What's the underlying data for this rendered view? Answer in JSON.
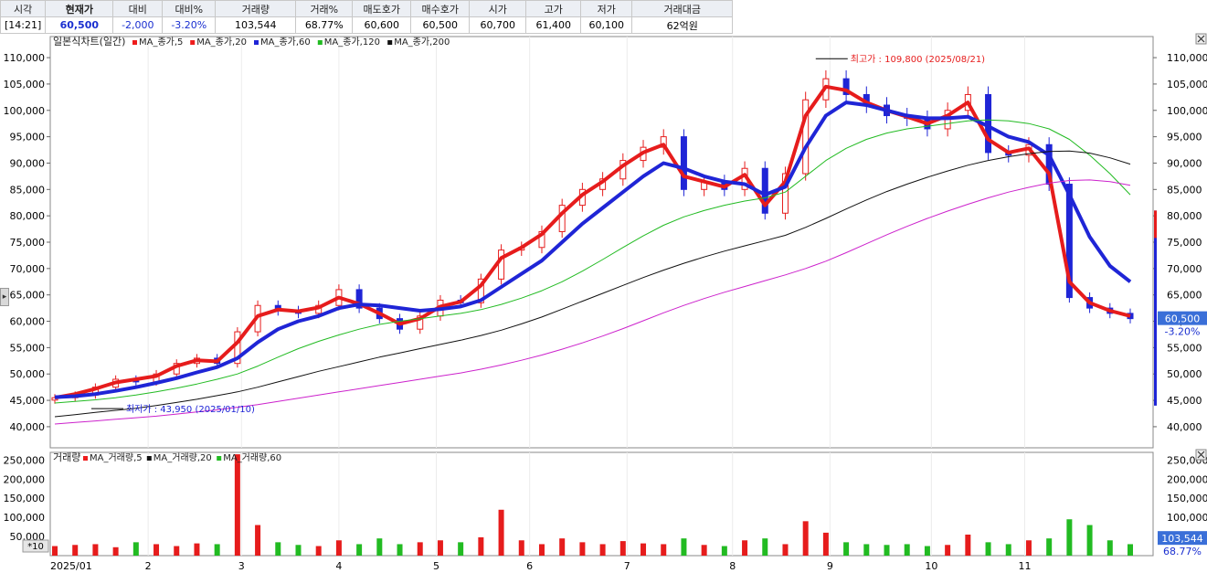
{
  "quote": {
    "headers": [
      "시각",
      "현재가",
      "대비",
      "대비%",
      "거래량",
      "거래%",
      "매도호가",
      "매수호가",
      "시가",
      "고가",
      "저가",
      "거래대금"
    ],
    "values": [
      "[14:21]",
      "60,500",
      "-2,000",
      "-3.20%",
      "103,544",
      "68.77%",
      "60,600",
      "60,500",
      "60,700",
      "61,400",
      "60,100",
      "62억원"
    ]
  },
  "price_legend": {
    "title": "일본식차트(일간)",
    "items": [
      {
        "label": "MA_종가,5",
        "color": "#ee1c1c"
      },
      {
        "label": "MA_종가,20",
        "color": "#ee1c1c"
      },
      {
        "label": "MA_종가,60",
        "color": "#1f25d6"
      },
      {
        "label": "MA_종가,120",
        "color": "#22bb22"
      },
      {
        "label": "MA_종가,200",
        "color": "#111111"
      }
    ]
  },
  "volume_legend": {
    "title": "거래량",
    "items": [
      {
        "label": "MA_거래량,5",
        "color": "#ee1c1c"
      },
      {
        "label": "MA_거래량,20",
        "color": "#111111"
      },
      {
        "label": "MA_거래량,60",
        "color": "#22bb22"
      }
    ]
  },
  "annotations": {
    "high": "최고가 : 109,800 (2025/08/21)",
    "low": "최저가 : 43,950 (2025/01/10)"
  },
  "price_tags": {
    "current": "60,500",
    "change": "-3.20%"
  },
  "volume_tags": {
    "current": "103,544",
    "ratio": "68.77%"
  },
  "volume_unit": "*10",
  "colors": {
    "up": "#e61c1c",
    "down": "#1f25d6",
    "ma5": "#e61c1c",
    "ma60": "#1f25d6",
    "ma120": "#22bb22",
    "ma200": "#111111",
    "extra": "#cc22cc"
  },
  "chart_data": [
    {
      "type": "candlestick",
      "title": "일본식차트(일간)",
      "x_labels": [
        "2025/01",
        "2",
        "3",
        "4",
        "5",
        "6",
        "7",
        "8",
        "9",
        "10",
        "11"
      ],
      "ylim": [
        36000,
        114000
      ],
      "y_ticks": [
        40000,
        45000,
        50000,
        55000,
        60000,
        65000,
        70000,
        75000,
        80000,
        85000,
        90000,
        95000,
        100000,
        105000,
        110000
      ],
      "close_series_weekly": [
        45500,
        46000,
        47500,
        49000,
        48500,
        50000,
        52000,
        53000,
        52000,
        58000,
        63000,
        62000,
        61500,
        63000,
        66000,
        62500,
        60500,
        58500,
        61000,
        64000,
        63500,
        68000,
        73500,
        74000,
        77000,
        82000,
        85000,
        87000,
        90500,
        93000,
        95000,
        85000,
        86500,
        85000,
        89000,
        80500,
        88000,
        102000,
        106000,
        103000,
        101000,
        99000,
        98500,
        96500,
        100000,
        103000,
        92000,
        91500,
        93500,
        86000,
        64500,
        62500,
        61500,
        60500
      ],
      "series": [
        {
          "name": "MA_종가,5",
          "values": [
            45500,
            46200,
            47200,
            48400,
            49000,
            49600,
            51500,
            52600,
            52400,
            56000,
            61000,
            62200,
            61900,
            62600,
            64500,
            63300,
            61500,
            59500,
            60500,
            62800,
            63700,
            66800,
            72000,
            74000,
            76500,
            80500,
            84000,
            86500,
            89500,
            92000,
            93500,
            87500,
            86500,
            85500,
            87800,
            82000,
            86500,
            99000,
            104500,
            103800,
            101500,
            100000,
            98800,
            97500,
            99000,
            101500,
            94500,
            92000,
            92800,
            88000,
            67500,
            63500,
            62000,
            61000
          ]
        },
        {
          "name": "MA_종가,60",
          "values": [
            45600,
            45800,
            46200,
            46800,
            47500,
            48300,
            49200,
            50300,
            51300,
            53000,
            56000,
            58500,
            60000,
            61000,
            62500,
            63200,
            63000,
            62500,
            62000,
            62300,
            62800,
            64000,
            66500,
            69000,
            71500,
            75000,
            78500,
            81500,
            84500,
            87500,
            90000,
            89000,
            87500,
            86500,
            86000,
            84000,
            85500,
            93000,
            99000,
            101500,
            101000,
            100000,
            99000,
            98500,
            98500,
            98800,
            97000,
            95000,
            94000,
            91500,
            84000,
            76000,
            70500,
            67500
          ]
        },
        {
          "name": "MA_종가,120",
          "values": [
            44500,
            44800,
            45100,
            45500,
            46000,
            46600,
            47300,
            48100,
            49000,
            50000,
            51500,
            53200,
            54800,
            56200,
            57400,
            58500,
            59400,
            60000,
            60500,
            61000,
            61500,
            62200,
            63200,
            64400,
            65800,
            67500,
            69500,
            71700,
            74000,
            76200,
            78200,
            79800,
            81000,
            82000,
            82800,
            83400,
            84500,
            87500,
            90500,
            92800,
            94500,
            95700,
            96500,
            97000,
            97500,
            98000,
            98200,
            98000,
            97500,
            96500,
            94500,
            91500,
            88000,
            84000
          ]
        },
        {
          "name": "MA_종가,200",
          "values": [
            41900,
            42300,
            42700,
            43100,
            43500,
            44000,
            44600,
            45200,
            45900,
            46600,
            47500,
            48500,
            49500,
            50500,
            51400,
            52300,
            53200,
            54000,
            54800,
            55600,
            56400,
            57300,
            58300,
            59500,
            60800,
            62300,
            63800,
            65300,
            66800,
            68300,
            69700,
            71000,
            72200,
            73300,
            74300,
            75300,
            76300,
            77800,
            79500,
            81300,
            83000,
            84600,
            86000,
            87300,
            88500,
            89600,
            90500,
            91200,
            91800,
            92200,
            92300,
            91900,
            91000,
            89800
          ]
        },
        {
          "name": "",
          "values": [
            40500,
            40800,
            41100,
            41400,
            41700,
            42000,
            42400,
            42800,
            43200,
            43700,
            44200,
            44800,
            45400,
            46000,
            46600,
            47200,
            47800,
            48400,
            49000,
            49600,
            50200,
            50900,
            51700,
            52600,
            53600,
            54700,
            55900,
            57200,
            58600,
            60100,
            61600,
            63000,
            64300,
            65500,
            66600,
            67700,
            68800,
            70000,
            71400,
            73000,
            74700,
            76400,
            78000,
            79500,
            80900,
            82200,
            83400,
            84500,
            85400,
            86200,
            86700,
            86800,
            86500,
            85800
          ]
        }
      ]
    },
    {
      "type": "bar",
      "title": "거래량",
      "ylim": [
        0,
        270000
      ],
      "y_ticks": [
        50000,
        100000,
        150000,
        200000,
        250000
      ],
      "volume_weekly": [
        25000,
        28000,
        30000,
        22000,
        35000,
        30000,
        25000,
        32000,
        30000,
        265000,
        80000,
        35000,
        28000,
        25000,
        40000,
        30000,
        45000,
        30000,
        35000,
        40000,
        35000,
        48000,
        120000,
        40000,
        30000,
        45000,
        35000,
        30000,
        38000,
        32000,
        30000,
        45000,
        28000,
        25000,
        40000,
        45000,
        30000,
        90000,
        60000,
        35000,
        30000,
        28000,
        30000,
        25000,
        28000,
        55000,
        35000,
        30000,
        40000,
        45000,
        95000,
        80000,
        40000,
        30000
      ]
    }
  ]
}
